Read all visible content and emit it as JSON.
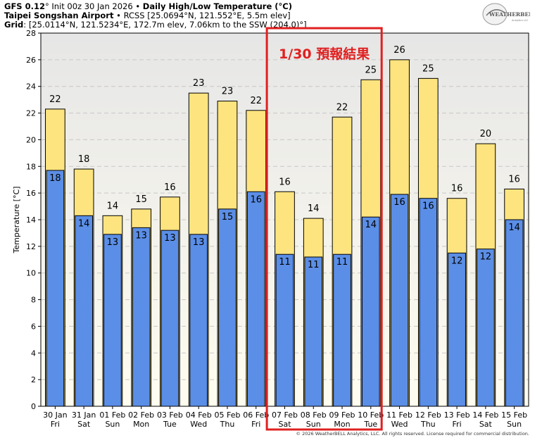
{
  "header": {
    "model": "GFS 0.12",
    "init": "° Init 00z 30 Jan 2026",
    "title": "Daily High/Low Temperature (°C)",
    "station_name": "Taipei Songshan Airport",
    "station_info": "RCSS [25.0694°N, 121.552°E, 5.5m elev]",
    "grid_label": "Grid",
    "grid_info": ": [25.0114°N, 121.5234°E, 172.7m elev, 7.06km to the SSW (204.0)°]"
  },
  "logo": {
    "text": "WEATHERBELL",
    "subtext": "Analytics LLC"
  },
  "annotation": {
    "text": "1/30 預報結果",
    "color": "#e02020"
  },
  "copyright": "© 2026 WeatherBELL Analytics, LLC. All rights reserved. License required for commercial distribution.",
  "colors": {
    "high": "#fde47f",
    "low": "#5b8ee6",
    "background_top": "#e6e6e6",
    "background_bottom": "#fffdf0"
  },
  "chart_data": {
    "type": "bar",
    "title": "Daily High/Low Temperature (°C)",
    "ylabel": "Temperature [°C]",
    "xlabel": "",
    "ylim": [
      0,
      28
    ],
    "yticks": [
      0,
      2,
      4,
      6,
      8,
      10,
      12,
      14,
      16,
      18,
      20,
      22,
      24,
      26,
      28
    ],
    "grid": true,
    "categories": [
      "30 Jan",
      "31 Jan",
      "01 Feb",
      "02 Feb",
      "03 Feb",
      "04 Feb",
      "05 Feb",
      "06 Feb",
      "07 Feb",
      "08 Feb",
      "09 Feb",
      "10 Feb",
      "11 Feb",
      "12 Feb",
      "13 Feb",
      "14 Feb",
      "15 Feb"
    ],
    "weekdays": [
      "Fri",
      "Sat",
      "Sun",
      "Mon",
      "Tue",
      "Wed",
      "Thu",
      "Fri",
      "Sat",
      "Sun",
      "Mon",
      "Tue",
      "Wed",
      "Thu",
      "Fri",
      "Sat",
      "Sun"
    ],
    "series": [
      {
        "name": "High",
        "values": [
          22.3,
          17.8,
          14.3,
          14.8,
          15.7,
          23.5,
          22.9,
          22.2,
          16.1,
          14.1,
          21.7,
          24.5,
          26.0,
          24.6,
          15.6,
          19.7,
          16.3
        ],
        "labels": [
          "22",
          "18",
          "14",
          "15",
          "16",
          "23",
          "23",
          "22",
          "16",
          "14",
          "22",
          "25",
          "26",
          "25",
          "16",
          "20",
          "16"
        ]
      },
      {
        "name": "Low",
        "values": [
          17.7,
          14.3,
          12.9,
          13.4,
          13.2,
          12.9,
          14.8,
          16.1,
          11.4,
          11.2,
          11.4,
          14.2,
          15.9,
          15.6,
          11.5,
          11.8,
          14.0
        ],
        "labels": [
          "18",
          "14",
          "13",
          "13",
          "13",
          "13",
          "15",
          "16",
          "11",
          "11",
          "11",
          "14",
          "16",
          "16",
          "12",
          "12",
          "14"
        ]
      }
    ],
    "highlight_range": [
      "07 Feb",
      "10 Feb"
    ]
  }
}
